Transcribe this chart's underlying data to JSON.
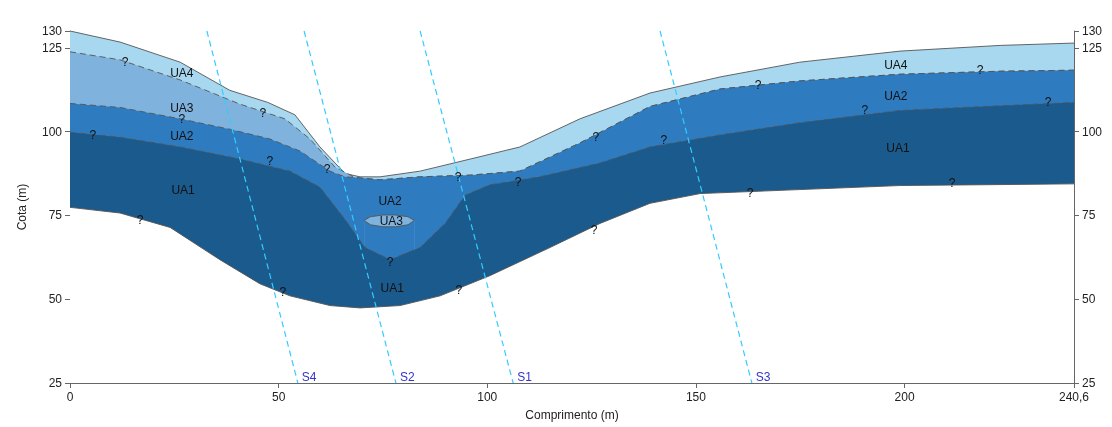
{
  "chart_data": {
    "type": "area",
    "xlabel": "Comprimento (m)",
    "ylabel": "Cota (m)",
    "xlim": [
      0,
      240.6
    ],
    "xticks": [
      0,
      50,
      100,
      150,
      200,
      {
        "value": 240.6,
        "label": "240,6"
      }
    ],
    "ylim": [
      25,
      130
    ],
    "yticks": [
      25,
      50,
      75,
      100,
      125,
      130
    ],
    "y2lim": [
      25,
      130
    ],
    "y2ticks": [
      25,
      50,
      75,
      100,
      125,
      130
    ],
    "grid": false,
    "legend": false,
    "series": [
      {
        "color": "#a8d8f0",
        "line_style": "solid",
        "x": [
          0,
          12,
          26.4,
          38.3,
          47.4,
          53.9,
          59.9,
          65.9,
          69.5,
          74.3,
          83.9,
          95.9,
          107.8,
          122.2,
          139,
          155.8,
          174.9,
          198.9,
          222.9,
          240.6
        ],
        "values": [
          130,
          126.7,
          120.7,
          112.3,
          108.7,
          105,
          95.4,
          87.5,
          86.5,
          86.5,
          88.2,
          91.8,
          95.4,
          103.8,
          111.5,
          116.3,
          120.7,
          124,
          125.7,
          126.4
        ]
      },
      {
        "color": "#80b2de",
        "line_style": "dashed",
        "x": [
          0,
          12,
          26.4,
          40.7,
          51.5,
          57.5,
          63.5,
          68.3,
          74.3,
          83.9,
          95.9,
          107.8,
          122.2,
          139,
          155.8,
          174.9,
          198.9,
          222.9,
          240.6
        ],
        "values": [
          123.8,
          121.4,
          115.4,
          108.2,
          103.8,
          97.8,
          89.4,
          86.3,
          85.6,
          86.5,
          87,
          88.2,
          96.6,
          107.5,
          112.7,
          115.1,
          117.1,
          118,
          118.3
        ]
      },
      {
        "color": "#2e7bc0",
        "line_style": "dashed",
        "x": [
          0,
          12,
          26.4,
          38.3,
          47.9,
          55.1,
          62.3,
          65.9,
          68.3,
          74.3,
          83.9,
          95.9,
          107.8,
          122.2,
          139,
          155.8,
          174.9,
          198.9,
          222.9,
          240.6
        ],
        "values": [
          108.4,
          107.2,
          103.8,
          100.7,
          97.8,
          94.2,
          88.2,
          86.5,
          86.3,
          85.6,
          86.5,
          87,
          88.2,
          96.6,
          107.5,
          112.7,
          115.1,
          117.1,
          118,
          118.3
        ]
      },
      {
        "color": "#80b2de",
        "line_style": "solid",
        "x": [
          70.5,
          72,
          75,
          78,
          81,
          82.5
        ],
        "values": [
          73.5,
          74.6,
          75.1,
          75.1,
          74.6,
          73.5
        ]
      },
      {
        "color": "#2e7bc0",
        "line_style": "solid",
        "x": [
          70.5,
          72,
          75,
          78,
          81,
          82.5
        ],
        "values": [
          73.5,
          72.2,
          71.6,
          71.6,
          72.2,
          73.5
        ]
      },
      {
        "color": "#1b5a8c",
        "line_style": "dashed",
        "x": [
          0,
          12,
          26.4,
          40.7,
          52.7,
          59.9,
          65.9,
          70.7,
          76.7,
          83.9,
          89.9,
          94.7,
          100.6,
          112.6,
          127,
          139,
          155.8,
          174.9,
          198.9,
          222.9,
          240.6
        ],
        "values": [
          99.8,
          98.3,
          95.4,
          91.8,
          88.2,
          83.4,
          73.8,
          65.4,
          61.8,
          65.4,
          72.6,
          81,
          84.1,
          86.5,
          90.6,
          95.4,
          99,
          102.6,
          106.3,
          107.7,
          108.7
        ]
      },
      {
        "color": "#ffffff",
        "line_style": "solid",
        "x": [
          0,
          12,
          24,
          35.9,
          45.5,
          52.7,
          62.3,
          69.5,
          79.1,
          88.7,
          100.6,
          115,
          127,
          139,
          151,
          174.9,
          198.9,
          240.6
        ],
        "values": [
          77.4,
          75.7,
          71.4,
          61.8,
          54.6,
          51,
          48.1,
          47.4,
          48.1,
          51,
          57,
          65.4,
          72.6,
          78.6,
          81.5,
          82.7,
          83.9,
          84.4
        ]
      },
      {
        "type": "line",
        "name": "S4",
        "color": "#33ccff",
        "line_style": "dashed",
        "x": [
          32.8,
          54.6
        ],
        "values": [
          130,
          25
        ]
      },
      {
        "type": "line",
        "name": "S2",
        "color": "#33ccff",
        "line_style": "dashed",
        "x": [
          56.1,
          78.1
        ],
        "values": [
          130,
          25
        ]
      },
      {
        "type": "line",
        "name": "S1",
        "color": "#33ccff",
        "line_style": "dashed",
        "x": [
          83.9,
          106.2
        ],
        "values": [
          130,
          25
        ]
      },
      {
        "type": "line",
        "name": "S3",
        "color": "#33ccff",
        "line_style": "dashed",
        "x": [
          141.4,
          163.4
        ],
        "values": [
          130,
          25
        ]
      }
    ],
    "annotations": [
      "UA4",
      "UA3",
      "UA2",
      "UA1",
      "UA2",
      "UA3",
      "UA1",
      "UA4",
      "UA2",
      "UA1",
      {
        "text": "?",
        "x": 13.2,
        "y": 120.9
      },
      {
        "text": "?",
        "x": 5.5,
        "y": 99.1
      },
      {
        "text": "?",
        "x": 26.8,
        "y": 103.7
      },
      {
        "text": "?",
        "x": 46.2,
        "y": 105.5
      },
      {
        "text": "?",
        "x": 47.9,
        "y": 91.1
      },
      {
        "text": "?",
        "x": 61.6,
        "y": 88.8
      },
      {
        "text": "?",
        "x": 16.8,
        "y": 73.6
      },
      {
        "text": "?",
        "x": 51,
        "y": 52.2
      },
      {
        "text": "?",
        "x": 76.7,
        "y": 61.1
      },
      {
        "text": "?",
        "x": 93.2,
        "y": 52.6
      },
      {
        "text": "?",
        "x": 93,
        "y": 86.5
      },
      {
        "text": "?",
        "x": 107.4,
        "y": 85.1
      },
      {
        "text": "?",
        "x": 126,
        "y": 98.3
      },
      {
        "text": "?",
        "x": 125.6,
        "y": 70.7
      },
      {
        "text": "?",
        "x": 142.3,
        "y": 97.4
      },
      {
        "text": "?",
        "x": 164.9,
        "y": 113.8
      },
      {
        "text": "?",
        "x": 163,
        "y": 81.7
      },
      {
        "text": "?",
        "x": 190.5,
        "y": 106.3
      },
      {
        "text": "?",
        "x": 211.4,
        "y": 84.6
      },
      {
        "text": "?",
        "x": 234.4,
        "y": 108.9
      },
      {
        "text": "?",
        "x": 218.1,
        "y": 118.3
      }
    ]
  }
}
